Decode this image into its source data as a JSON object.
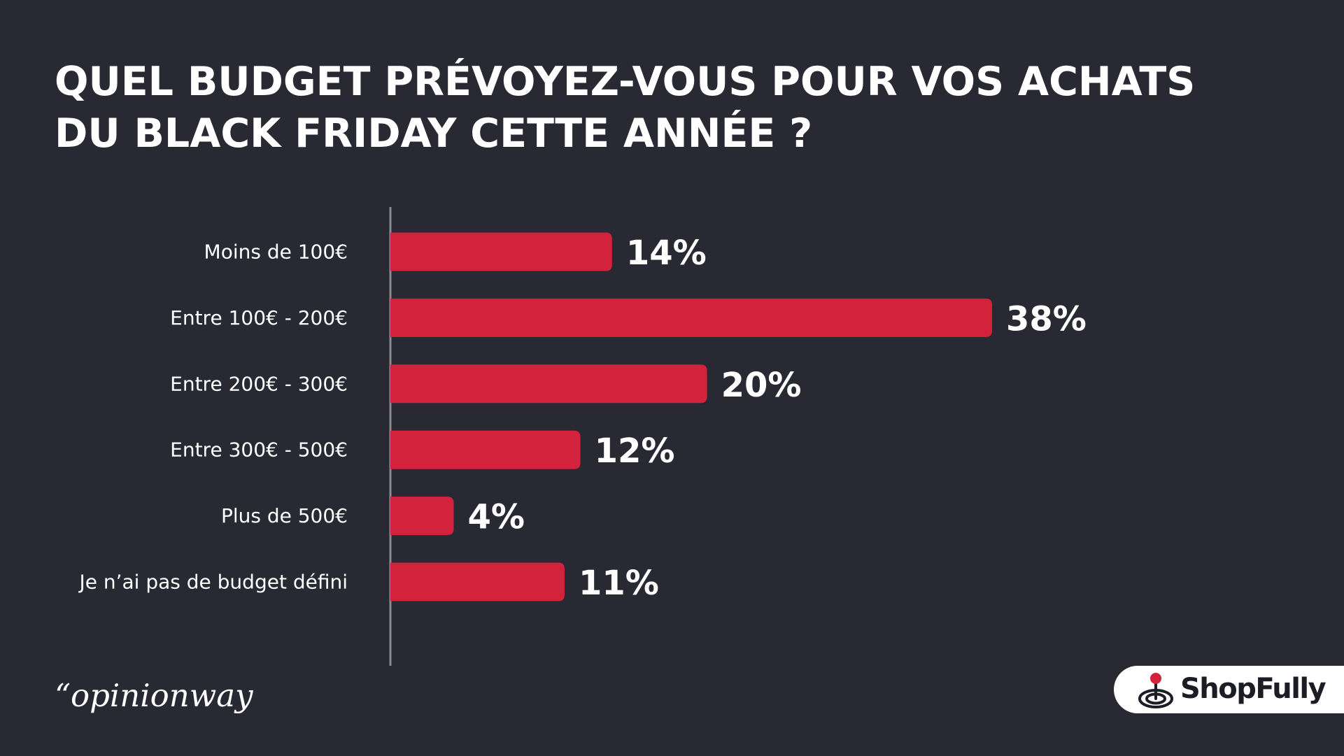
{
  "title_lines": [
    "QUEL BUDGET PRÉVOYEZ-VOUS POUR VOS ACHATS",
    "DU BLACK FRIDAY CETTE ANNÉE ?"
  ],
  "source": "“opinionway",
  "brand": {
    "name": "ShopFully",
    "icon": "target-pin-icon"
  },
  "colors": {
    "background": "#282932",
    "bar": "#d2223c",
    "axis": "#8a8b92",
    "text": "#ffffff"
  },
  "chart_data": {
    "type": "bar",
    "orientation": "horizontal",
    "categories": [
      "Moins de 100€",
      "Entre 100€ - 200€",
      "Entre 200€ - 300€",
      "Entre 300€ - 500€",
      "Plus de 500€",
      "Je n’ai pas de budget défini"
    ],
    "values": [
      14,
      38,
      20,
      12,
      4,
      11
    ],
    "value_labels": [
      "14%",
      "38%",
      "20%",
      "12%",
      "4%",
      "11%"
    ],
    "unit": "%",
    "xlim": [
      0,
      38
    ],
    "grid": false,
    "legend": "none"
  }
}
